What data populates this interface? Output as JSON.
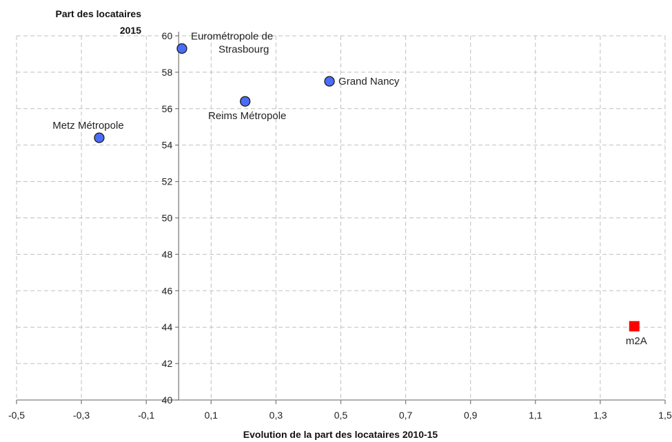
{
  "chart_data": {
    "type": "scatter",
    "title": "",
    "xlabel": "Evolution de la part des locataires 2010-15",
    "ylabel": [
      "Part des locataires",
      "2015"
    ],
    "xlim": [
      -0.5,
      1.5
    ],
    "ylim": [
      40,
      60
    ],
    "x_ticks": [
      "-0,5",
      "-0,3",
      "-0,1",
      "0,1",
      "0,3",
      "0,5",
      "0,7",
      "0,9",
      "1,1",
      "1,3",
      "1,5"
    ],
    "y_ticks": [
      "40",
      "42",
      "44",
      "46",
      "48",
      "50",
      "52",
      "54",
      "56",
      "58",
      "60"
    ],
    "grid": true,
    "points": [
      {
        "label": [
          "Eurométropole de",
          "Strasbourg"
        ],
        "x": 0.01,
        "y": 59.3,
        "marker": "circle",
        "color": "#4a6cf7",
        "label_position": "right-top"
      },
      {
        "label": [
          "Grand Nancy"
        ],
        "x": 0.465,
        "y": 57.5,
        "marker": "circle",
        "color": "#4a6cf7",
        "label_position": "right"
      },
      {
        "label": [
          "Reims Métropole"
        ],
        "x": 0.205,
        "y": 56.4,
        "marker": "circle",
        "color": "#4a6cf7",
        "label_position": "below"
      },
      {
        "label": [
          "Metz Métropole"
        ],
        "x": -0.245,
        "y": 54.4,
        "marker": "circle",
        "color": "#4a6cf7",
        "label_position": "above-left"
      },
      {
        "label": [
          "m2A"
        ],
        "x": 1.405,
        "y": 44.05,
        "marker": "square",
        "color": "#ff0000",
        "label_position": "below"
      }
    ]
  }
}
